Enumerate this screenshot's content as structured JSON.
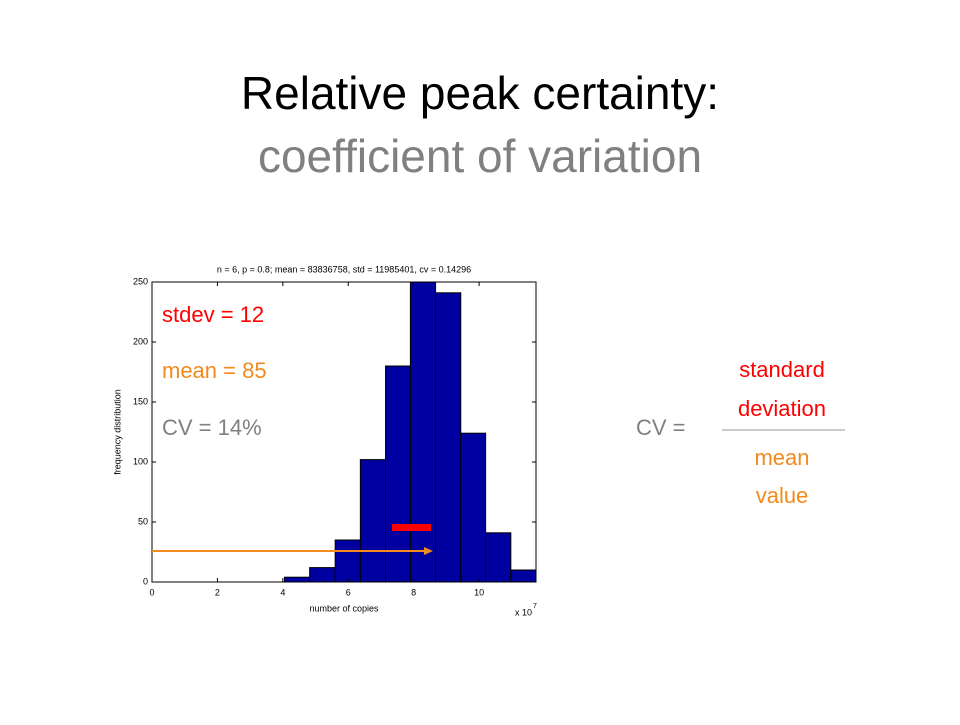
{
  "slide": {
    "title": "Relative peak certainty:",
    "subtitle": "coefficient of variation",
    "annotations": {
      "stdev": "stdev = 12",
      "mean": "mean = 85",
      "cv": "CV = 14%"
    },
    "formula": {
      "lhs": "CV =",
      "numerator": [
        "standard",
        "deviation"
      ],
      "denominator": [
        "mean",
        "value"
      ]
    }
  },
  "chart_data": {
    "type": "histogram",
    "title": "n = 6, p = 0.8; mean = 83836758, std = 11985401, cv = 0.14296",
    "x_label": "number of copies",
    "y_label": "frequency distribution",
    "x_multiplier": "x 10",
    "x_multiplier_exp": "7",
    "bins": [
      4.05,
      4.82,
      5.6,
      6.37,
      7.14,
      7.9,
      8.67,
      9.44,
      10.2,
      10.97,
      11.74
    ],
    "values": [
      4,
      12,
      35,
      102,
      180,
      250,
      241,
      124,
      41,
      10
    ],
    "color": "#0000a0",
    "xlim": [
      0,
      11.74
    ],
    "ylim": [
      0,
      250
    ],
    "xticks": [
      0,
      2,
      4,
      6,
      8,
      10
    ],
    "yticks": [
      0,
      50,
      100,
      150,
      200,
      250
    ]
  }
}
